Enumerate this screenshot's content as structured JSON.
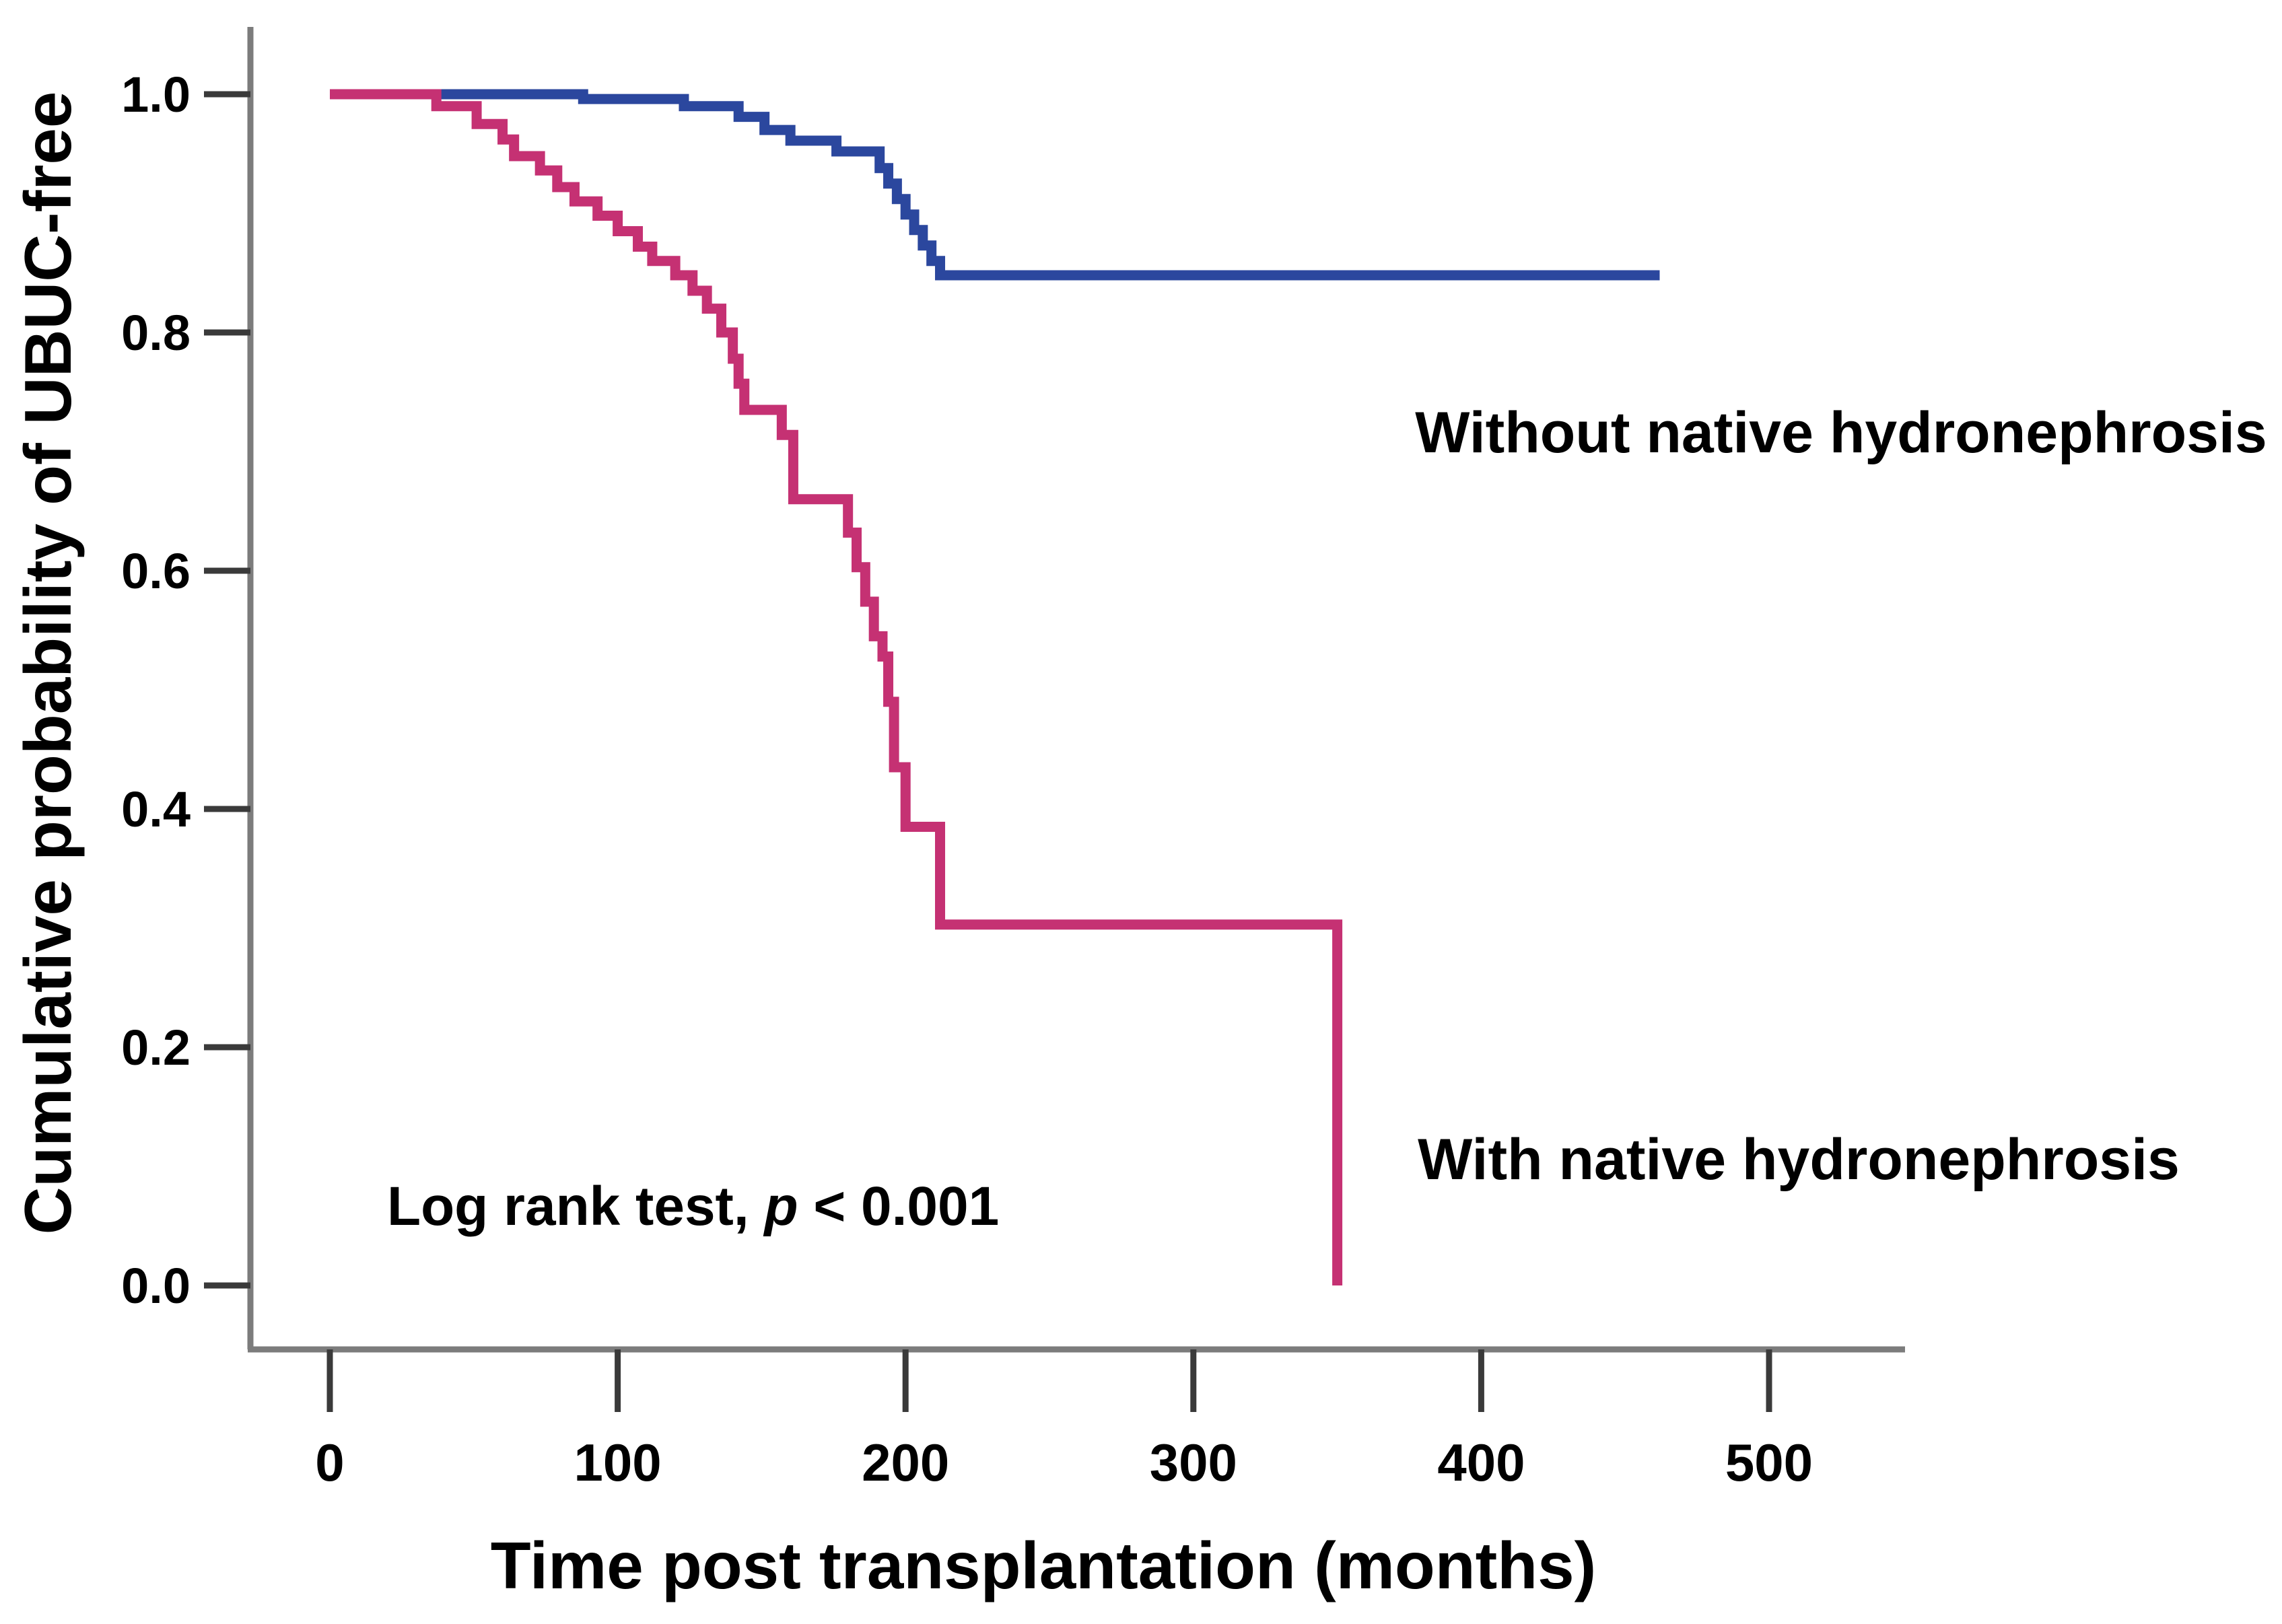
{
  "figure": {
    "xlabel": "Time post transplantation (months)",
    "ylabel": "Cumulative probability of UBUC-free",
    "annotation_without": "Without native hydronephrosis",
    "annotation_with": "With native hydronephrosis",
    "log_rank": {
      "prefix": "Log rank test, ",
      "p_symbol": "p",
      "suffix": " < 0.001"
    }
  },
  "colors": {
    "without_native_hydronephrosis": "#2b479e",
    "with_native_hydronephrosis": "#c53173",
    "axis_line": "#7c7c7c",
    "tick_mark": "#3a3a3a",
    "text": "#000000"
  },
  "chart_data": {
    "type": "line",
    "subtype": "kaplan-meier-step",
    "title": "",
    "xlabel": "Time post transplantation (months)",
    "ylabel": "Cumulative probability of UBUC-free",
    "xlim": [
      0,
      500
    ],
    "ylim": [
      0.0,
      1.0
    ],
    "x_ticks": [
      0,
      100,
      200,
      300,
      400,
      500
    ],
    "y_ticks": [
      0.0,
      0.2,
      0.4,
      0.6,
      0.8,
      1.0
    ],
    "grid": false,
    "legend_position": "inline-annotations",
    "annotations": [
      "Without native hydronephrosis",
      "With native hydronephrosis",
      "Log rank test, p < 0.001"
    ],
    "series": [
      {
        "name": "Without native hydronephrosis",
        "color": "#2b479e",
        "end_x": 462,
        "points": [
          [
            0,
            1.0
          ],
          [
            88,
            0.996
          ],
          [
            123,
            0.99
          ],
          [
            142,
            0.981
          ],
          [
            151,
            0.97
          ],
          [
            160,
            0.961
          ],
          [
            176,
            0.952
          ],
          [
            191,
            0.938
          ],
          [
            194,
            0.925
          ],
          [
            197,
            0.912
          ],
          [
            200,
            0.899
          ],
          [
            203,
            0.886
          ],
          [
            206,
            0.873
          ],
          [
            209,
            0.86
          ],
          [
            212,
            0.848
          ]
        ]
      },
      {
        "name": "With native hydronephrosis",
        "color": "#c53173",
        "end_x": 350,
        "points": [
          [
            0,
            1.0
          ],
          [
            37,
            0.99
          ],
          [
            51,
            0.975
          ],
          [
            60,
            0.962
          ],
          [
            64,
            0.948
          ],
          [
            73,
            0.936
          ],
          [
            79,
            0.922
          ],
          [
            85,
            0.91
          ],
          [
            93,
            0.898
          ],
          [
            100,
            0.885
          ],
          [
            107,
            0.872
          ],
          [
            112,
            0.86
          ],
          [
            120,
            0.848
          ],
          [
            126,
            0.835
          ],
          [
            131,
            0.82
          ],
          [
            136,
            0.8
          ],
          [
            140,
            0.778
          ],
          [
            142,
            0.757
          ],
          [
            144,
            0.735
          ],
          [
            157,
            0.714
          ],
          [
            161,
            0.66
          ],
          [
            180,
            0.632
          ],
          [
            183,
            0.603
          ],
          [
            186,
            0.574
          ],
          [
            189,
            0.545
          ],
          [
            192,
            0.528
          ],
          [
            194,
            0.49
          ],
          [
            196,
            0.435
          ],
          [
            200,
            0.385
          ],
          [
            212,
            0.303
          ],
          [
            350,
            0.0
          ]
        ]
      }
    ]
  }
}
